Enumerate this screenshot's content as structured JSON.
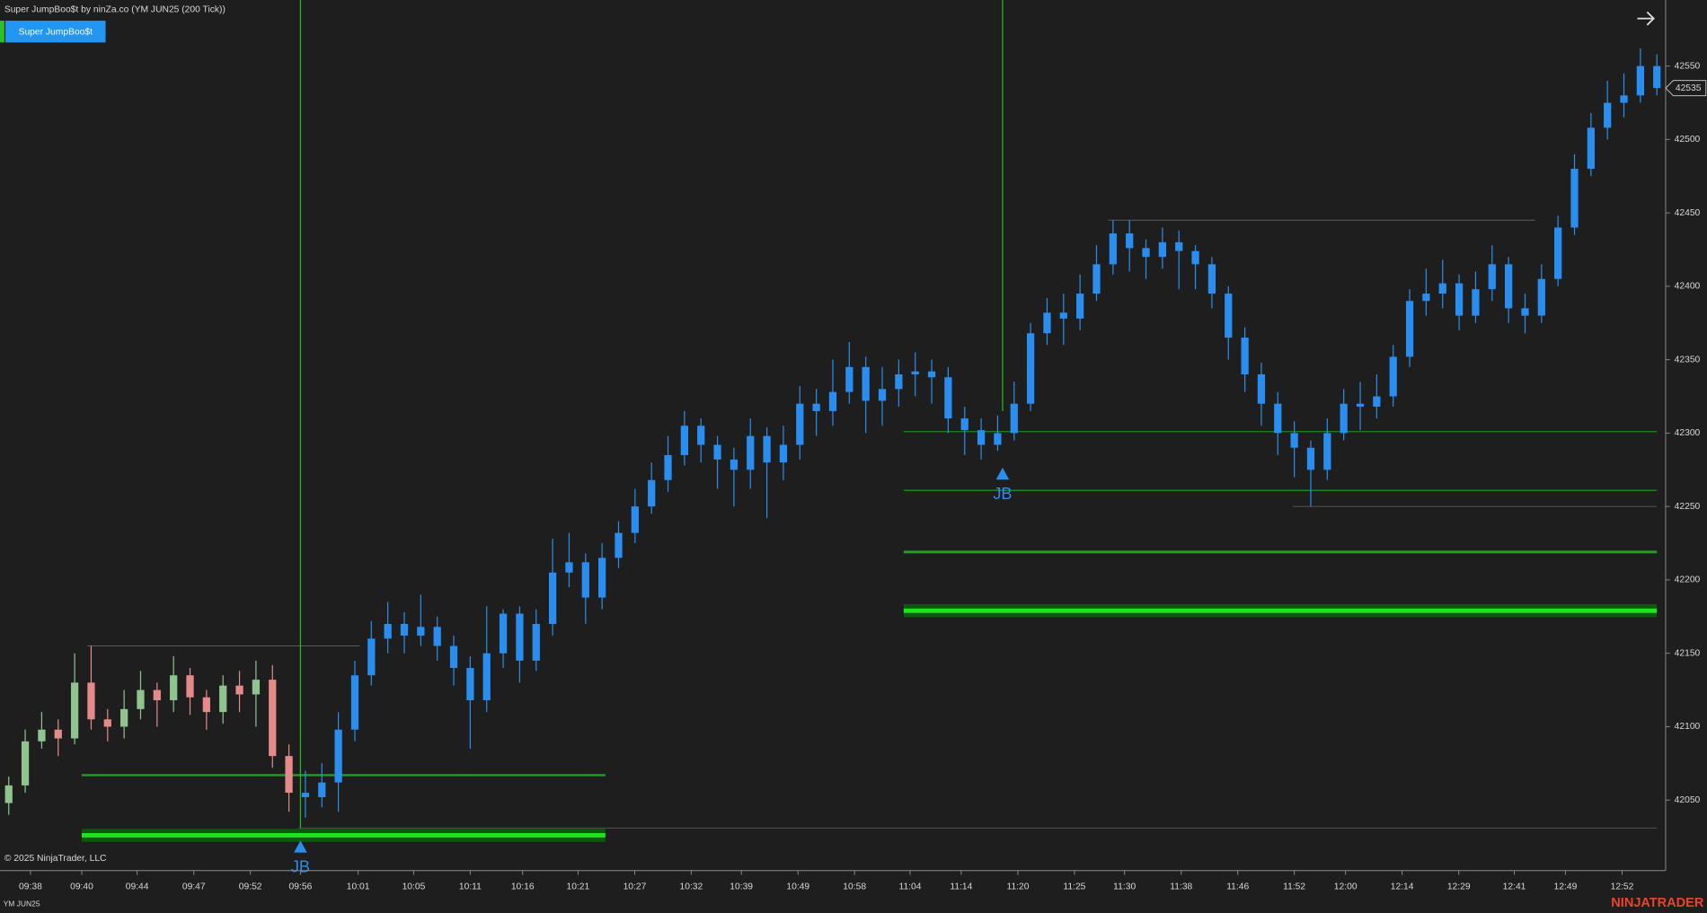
{
  "header": {
    "title": "Super JumpBoo$t by ninZa.co (YM JUN25 (200 Tick))",
    "button": "Super JumpBoo$t"
  },
  "footer": {
    "copyright": "© 2025 NinjaTrader, LLC",
    "instrument": "YM JUN25",
    "logo": "NINJATRADER"
  },
  "chart_data": {
    "type": "candlestick",
    "background": "#1e1e1e",
    "xlim": [
      -0.53,
      100.53
    ],
    "ylim": [
      42002,
      42595
    ],
    "yticks": [
      42050,
      42100,
      42150,
      42200,
      42250,
      42300,
      42350,
      42400,
      42450,
      42500,
      42550
    ],
    "xticks": [
      {
        "value": 1.32,
        "label": "09:38"
      },
      {
        "value": 4.43,
        "label": "09:40"
      },
      {
        "value": 7.79,
        "label": "09:44"
      },
      {
        "value": 11.23,
        "label": "09:47"
      },
      {
        "value": 14.66,
        "label": "09:52"
      },
      {
        "value": 17.7,
        "label": "09:56"
      },
      {
        "value": 21.2,
        "label": "10:01"
      },
      {
        "value": 24.57,
        "label": "10:05"
      },
      {
        "value": 28.0,
        "label": "10:11"
      },
      {
        "value": 31.18,
        "label": "10:16"
      },
      {
        "value": 34.54,
        "label": "10:21"
      },
      {
        "value": 37.98,
        "label": "10:27"
      },
      {
        "value": 41.41,
        "label": "10:32"
      },
      {
        "value": 44.45,
        "label": "10:39"
      },
      {
        "value": 47.89,
        "label": "10:49"
      },
      {
        "value": 51.32,
        "label": "10:58"
      },
      {
        "value": 54.69,
        "label": "11:04"
      },
      {
        "value": 57.79,
        "label": "11:14"
      },
      {
        "value": 61.23,
        "label": "11:20"
      },
      {
        "value": 64.66,
        "label": "11:25"
      },
      {
        "value": 67.7,
        "label": "11:30"
      },
      {
        "value": 71.14,
        "label": "11:38"
      },
      {
        "value": 74.57,
        "label": "11:46"
      },
      {
        "value": 78.0,
        "label": "11:52"
      },
      {
        "value": 81.11,
        "label": "12:00"
      },
      {
        "value": 84.54,
        "label": "12:14"
      },
      {
        "value": 87.98,
        "label": "12:29"
      },
      {
        "value": 91.35,
        "label": "12:41"
      },
      {
        "value": 94.45,
        "label": "12:49"
      },
      {
        "value": 97.89,
        "label": "12:52"
      }
    ],
    "candle_styles": [
      {
        "from": 0,
        "up_color": "#8fc48f",
        "down_color": "#e58a8a"
      },
      {
        "from": 18,
        "up_color": "#2a8df0",
        "down_color": "#2a8df0"
      }
    ],
    "open": [
      42048,
      42060,
      42090,
      42098,
      42092,
      42130,
      42105,
      42100,
      42112,
      42125,
      42118,
      42135,
      42120,
      42110,
      42128,
      42122,
      42132,
      42080,
      42055,
      42052,
      42062,
      42098,
      42135,
      42160,
      42170,
      42162,
      42168,
      42155,
      42140,
      42118,
      42150,
      42177,
      42145,
      42170,
      42205,
      42212,
      42188,
      42215,
      42232,
      42250,
      42268,
      42285,
      42305,
      42292,
      42282,
      42275,
      42298,
      42280,
      42292,
      42320,
      42315,
      42328,
      42345,
      42322,
      42330,
      42340,
      42342,
      42338,
      42310,
      42302,
      42292,
      42300,
      42320,
      42368,
      42382,
      42378,
      42395,
      42415,
      42436,
      42426,
      42420,
      42430,
      42424,
      42415,
      42395,
      42365,
      42340,
      42320,
      42300,
      42290,
      42275,
      42300,
      42320,
      42318,
      42325,
      42352,
      42390,
      42395,
      42402,
      42380,
      42398,
      42415,
      42385,
      42380,
      42405,
      42440,
      42480,
      42508,
      42525,
      42530,
      42550
    ],
    "high": [
      42066,
      42098,
      42110,
      42105,
      42150,
      42155,
      42112,
      42125,
      42138,
      42130,
      42148,
      42140,
      42125,
      42135,
      42138,
      42145,
      42142,
      42088,
      42070,
      42075,
      42110,
      42145,
      42172,
      42185,
      42178,
      42190,
      42175,
      42162,
      42148,
      42182,
      42180,
      42182,
      42180,
      42228,
      42232,
      42218,
      42225,
      42240,
      42262,
      42280,
      42298,
      42315,
      42310,
      42298,
      42290,
      42310,
      42304,
      42305,
      42332,
      42330,
      42350,
      42362,
      42352,
      42345,
      42350,
      42355,
      42350,
      42345,
      42318,
      42310,
      42312,
      42335,
      42375,
      42392,
      42395,
      42408,
      42428,
      42445,
      42445,
      42432,
      42440,
      42438,
      42428,
      42420,
      42400,
      42372,
      42348,
      42328,
      42308,
      42295,
      42310,
      42330,
      42335,
      42340,
      42360,
      42398,
      42412,
      42418,
      42408,
      42410,
      42428,
      42420,
      42395,
      42415,
      42448,
      42490,
      42518,
      42540,
      42545,
      42562,
      42558
    ],
    "low": [
      42040,
      42055,
      42085,
      42080,
      42088,
      42098,
      42090,
      42092,
      42105,
      42100,
      42110,
      42108,
      42098,
      42102,
      42110,
      42100,
      42072,
      42042,
      42038,
      42045,
      42042,
      42090,
      42128,
      42150,
      42150,
      42155,
      42145,
      42128,
      42085,
      42110,
      42140,
      42130,
      42138,
      42162,
      42195,
      42170,
      42180,
      42208,
      42225,
      42245,
      42260,
      42278,
      42280,
      42262,
      42250,
      42262,
      42242,
      42268,
      42282,
      42298,
      42305,
      42320,
      42300,
      42305,
      42318,
      42325,
      42320,
      42300,
      42285,
      42282,
      42288,
      42295,
      42315,
      42360,
      42360,
      42370,
      42390,
      42408,
      42410,
      42405,
      42412,
      42398,
      42398,
      42385,
      42350,
      42328,
      42305,
      42285,
      42270,
      42250,
      42268,
      42295,
      42302,
      42310,
      42318,
      42345,
      42380,
      42385,
      42370,
      42375,
      42390,
      42375,
      42368,
      42375,
      42400,
      42435,
      42475,
      42500,
      42515,
      42525,
      42530
    ],
    "close": [
      42060,
      42090,
      42098,
      42092,
      42130,
      42105,
      42100,
      42112,
      42125,
      42118,
      42135,
      42120,
      42110,
      42128,
      42122,
      42132,
      42080,
      42055,
      42052,
      42062,
      42098,
      42135,
      42160,
      42170,
      42162,
      42168,
      42155,
      42140,
      42118,
      42150,
      42177,
      42145,
      42170,
      42205,
      42212,
      42188,
      42215,
      42232,
      42250,
      42268,
      42285,
      42305,
      42292,
      42282,
      42275,
      42298,
      42280,
      42292,
      42320,
      42315,
      42328,
      42345,
      42322,
      42330,
      42340,
      42342,
      42338,
      42310,
      42302,
      42292,
      42300,
      42320,
      42368,
      42382,
      42378,
      42395,
      42415,
      42436,
      42426,
      42420,
      42430,
      42424,
      42415,
      42395,
      42365,
      42340,
      42320,
      42300,
      42290,
      42275,
      42300,
      42320,
      42318,
      42325,
      42352,
      42390,
      42395,
      42402,
      42380,
      42398,
      42415,
      42385,
      42380,
      42405,
      42440,
      42480,
      42508,
      42525,
      42530,
      42550,
      42535
    ],
    "levels": [
      {
        "x": [
          4.76,
          21.3
        ],
        "price": 42155,
        "color": "#5a5a5a",
        "width": 0.8
      },
      {
        "x": [
          17.6,
          100
        ],
        "price": 42031,
        "color": "#5a5a5a",
        "width": 0.8
      },
      {
        "x": [
          66.7,
          92.6
        ],
        "price": 42445,
        "color": "#5a5a5a",
        "width": 0.8
      },
      {
        "x": [
          77.9,
          100
        ],
        "price": 42250,
        "color": "#5a5a5a",
        "width": 0.8
      },
      {
        "x": [
          4.43,
          36.2
        ],
        "price": 42067,
        "color": "#1fa01f",
        "width": 2
      },
      {
        "x": [
          4.43,
          36.2
        ],
        "price": 42026,
        "color": "#22e022",
        "width": 4,
        "band_color": "#0b5a0b"
      },
      {
        "x": [
          54.3,
          100
        ],
        "price": 42301,
        "color": "#1a8a1a",
        "width": 1
      },
      {
        "x": [
          54.3,
          100
        ],
        "price": 42261,
        "color": "#1fa01f",
        "width": 1
      },
      {
        "x": [
          54.3,
          100
        ],
        "price": 42219,
        "color": "#1fa01f",
        "width": 2.5
      },
      {
        "x": [
          54.3,
          100
        ],
        "price": 42179,
        "color": "#22e022",
        "width": 4,
        "band_color": "#0b5a0b"
      }
    ],
    "signals": [
      {
        "x": 17.7,
        "price": 42018,
        "line_to": 42031,
        "label": "JB",
        "color": "#2a8df0",
        "line_color": "#1fc01f"
      },
      {
        "x": 60.3,
        "price": 42272,
        "line_to": 42315,
        "label": "JB",
        "color": "#2a8df0",
        "line_color": "#1fc01f"
      }
    ]
  }
}
